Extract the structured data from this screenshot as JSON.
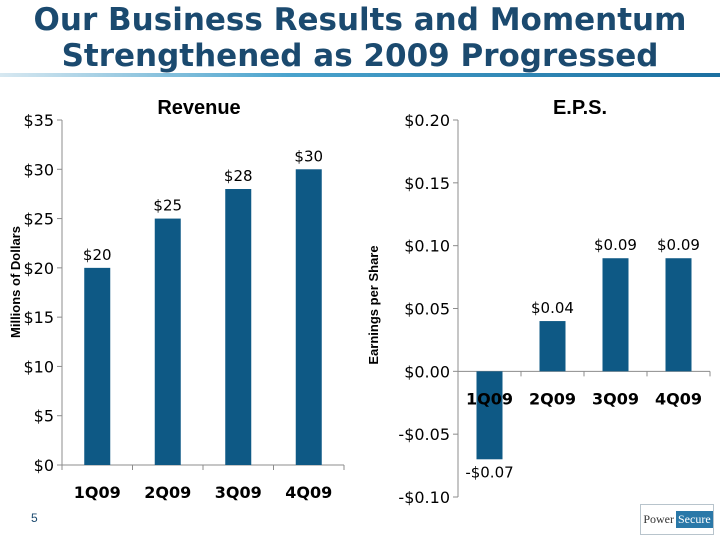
{
  "slide": {
    "title_line1": "Our Business Results and Momentum",
    "title_line2": "Strengthened as 2009 Progressed",
    "page_number": "5",
    "logo": {
      "part1": "Power",
      "part2": "Secure"
    },
    "accent_color": "#1b4a6f",
    "bar_color": "#0e5985"
  },
  "chart_data": [
    {
      "type": "bar",
      "title": "Revenue",
      "ylabel": "Millions of Dollars",
      "xlabel": "",
      "categories": [
        "1Q09",
        "2Q09",
        "3Q09",
        "4Q09"
      ],
      "values": [
        20,
        25,
        28,
        30
      ],
      "data_labels": [
        "$20",
        "$25",
        "$28",
        "$30"
      ],
      "ylim": [
        0,
        35
      ],
      "yticks": [
        0,
        5,
        10,
        15,
        20,
        25,
        30,
        35
      ],
      "ytick_labels": [
        "$0",
        "$5",
        "$10",
        "$15",
        "$20",
        "$25",
        "$30",
        "$35"
      ],
      "grid": false,
      "legend": "none"
    },
    {
      "type": "bar",
      "title": "E.P.S.",
      "ylabel": "Earnings per Share",
      "xlabel": "",
      "categories": [
        "1Q09",
        "2Q09",
        "3Q09",
        "4Q09"
      ],
      "values": [
        -0.07,
        0.04,
        0.09,
        0.09
      ],
      "data_labels": [
        "-$0.07",
        "$0.04",
        "$0.09",
        "$0.09"
      ],
      "ylim": [
        -0.1,
        0.2
      ],
      "yticks": [
        -0.1,
        -0.05,
        0.0,
        0.05,
        0.1,
        0.15,
        0.2
      ],
      "ytick_labels": [
        "-$0.10",
        "-$0.05",
        "$0.00",
        "$0.05",
        "$0.10",
        "$0.15",
        "$0.20"
      ],
      "grid": false,
      "legend": "none"
    }
  ]
}
